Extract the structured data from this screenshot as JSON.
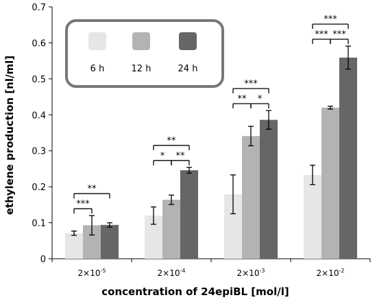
{
  "chart_data": {
    "type": "bar",
    "ylabel": "ethylene production [nl/ml]",
    "xlabel": "concentration of 24epiBL [mol/l]",
    "ylim": [
      0,
      0.7
    ],
    "yticks": [
      "0",
      "0.1",
      "0.2",
      "0.3",
      "0.4",
      "0.5",
      "0.6",
      "0.7"
    ],
    "categories": [
      {
        "base": "2×10",
        "exp": "-5"
      },
      {
        "base": "2×10",
        "exp": "-4"
      },
      {
        "base": "2×10",
        "exp": "-3"
      },
      {
        "base": "2×10",
        "exp": "-2"
      }
    ],
    "series": [
      {
        "name": "6 h",
        "color": "#e6e6e6",
        "values": [
          0.071,
          0.12,
          0.179,
          0.233
        ],
        "errors": [
          0.006,
          0.024,
          0.054,
          0.027
        ]
      },
      {
        "name": "12 h",
        "color": "#b3b3b3",
        "values": [
          0.093,
          0.164,
          0.341,
          0.42
        ],
        "errors": [
          0.027,
          0.013,
          0.027,
          0.004
        ]
      },
      {
        "name": "24 h",
        "color": "#666666",
        "values": [
          0.094,
          0.246,
          0.386,
          0.559
        ],
        "errors": [
          0.006,
          0.008,
          0.026,
          0.032
        ]
      }
    ],
    "legend": {
      "placement": "top-left",
      "entries": [
        "6 h",
        "12 h",
        "24 h"
      ]
    },
    "significance": [
      {
        "category": 0,
        "from": 0,
        "to": 1,
        "level": 1,
        "label": "***"
      },
      {
        "category": 0,
        "from": 0,
        "to": 2,
        "level": 2,
        "label": "**"
      },
      {
        "category": 1,
        "from": 0,
        "to": 1,
        "level": 1,
        "label": "*"
      },
      {
        "category": 1,
        "from": 1,
        "to": 2,
        "level": 1,
        "label": "**"
      },
      {
        "category": 1,
        "from": 0,
        "to": 2,
        "level": 2,
        "label": "**"
      },
      {
        "category": 2,
        "from": 0,
        "to": 1,
        "level": 1,
        "label": "**"
      },
      {
        "category": 2,
        "from": 1,
        "to": 2,
        "level": 1,
        "label": "*"
      },
      {
        "category": 2,
        "from": 0,
        "to": 2,
        "level": 2,
        "label": "***"
      },
      {
        "category": 3,
        "from": 0,
        "to": 1,
        "level": 1,
        "label": "***"
      },
      {
        "category": 3,
        "from": 1,
        "to": 2,
        "level": 1,
        "label": "***"
      },
      {
        "category": 3,
        "from": 0,
        "to": 2,
        "level": 2,
        "label": "***"
      }
    ]
  }
}
